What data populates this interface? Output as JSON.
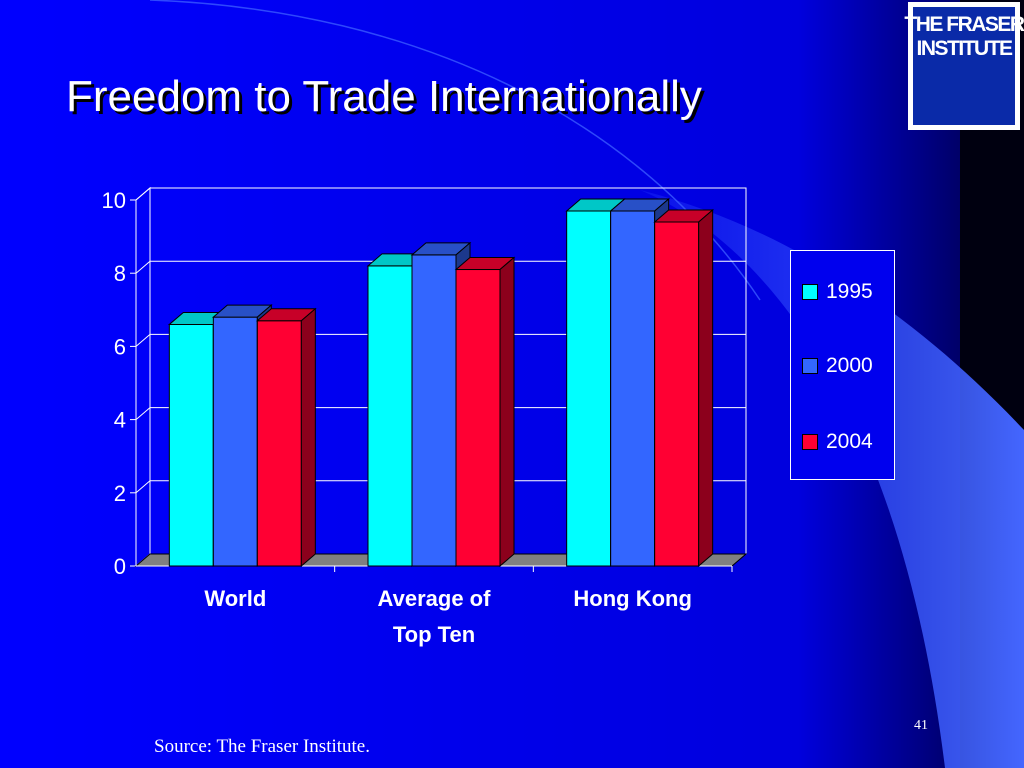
{
  "slide": {
    "title": "Freedom to Trade Internationally",
    "source": "Source: The Fraser Institute.",
    "number": "41"
  },
  "logo": {
    "lines": [
      "THE FRASER",
      "INSTITUTE"
    ]
  },
  "colors": {
    "background": "#0000ee",
    "accent_curve": "#3355ff",
    "right_band": "#000000"
  },
  "chart_data": {
    "type": "bar",
    "style": "3d-clustered",
    "categories": [
      "World",
      "Average of\nTop Ten",
      "Hong Kong"
    ],
    "series": [
      {
        "name": "1995",
        "values": [
          6.6,
          8.2,
          9.7
        ],
        "color": "#00ffff"
      },
      {
        "name": "2000",
        "values": [
          6.8,
          8.5,
          9.7
        ],
        "color": "#3366ff"
      },
      {
        "name": "2004",
        "values": [
          6.7,
          8.1,
          9.4
        ],
        "color": "#ff0033"
      }
    ],
    "ylim": [
      0,
      10
    ],
    "yticks": [
      "0",
      "2",
      "4",
      "6",
      "8",
      "10"
    ],
    "title": "",
    "xlabel": "",
    "ylabel": "",
    "grid": true,
    "legend": "right"
  }
}
